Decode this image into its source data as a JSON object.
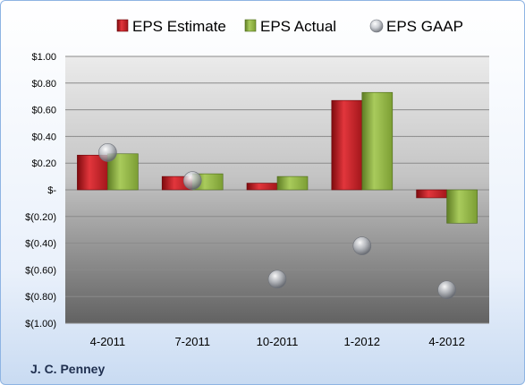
{
  "company": "J. C. Penney",
  "chart_data": {
    "type": "bar",
    "categories": [
      "4-2011",
      "7-2011",
      "10-2011",
      "1-2012",
      "4-2012"
    ],
    "series": [
      {
        "name": "EPS Estimate",
        "kind": "bar",
        "color": "#c0141b",
        "values": [
          0.26,
          0.1,
          0.05,
          0.67,
          -0.06
        ]
      },
      {
        "name": "EPS Actual",
        "kind": "bar",
        "color": "#8cb43c",
        "values": [
          0.27,
          0.12,
          0.1,
          0.73,
          -0.25
        ]
      },
      {
        "name": "EPS GAAP",
        "kind": "marker",
        "color": "#b8bcc4",
        "values": [
          0.28,
          0.07,
          -0.67,
          -0.42,
          -0.75
        ]
      }
    ],
    "ylim": [
      -1.0,
      1.0
    ],
    "yticks": [
      1.0,
      0.8,
      0.6,
      0.4,
      0.2,
      0.0,
      -0.2,
      -0.4,
      -0.6,
      -0.8,
      -1.0
    ],
    "ytick_labels": [
      "$1.00",
      "$0.80",
      "$0.60",
      "$0.40",
      "$0.20",
      "$-",
      "$(0.20)",
      "$(0.40)",
      "$(0.60)",
      "$(0.80)",
      "$(1.00)"
    ],
    "grid": true,
    "legend": "top"
  }
}
